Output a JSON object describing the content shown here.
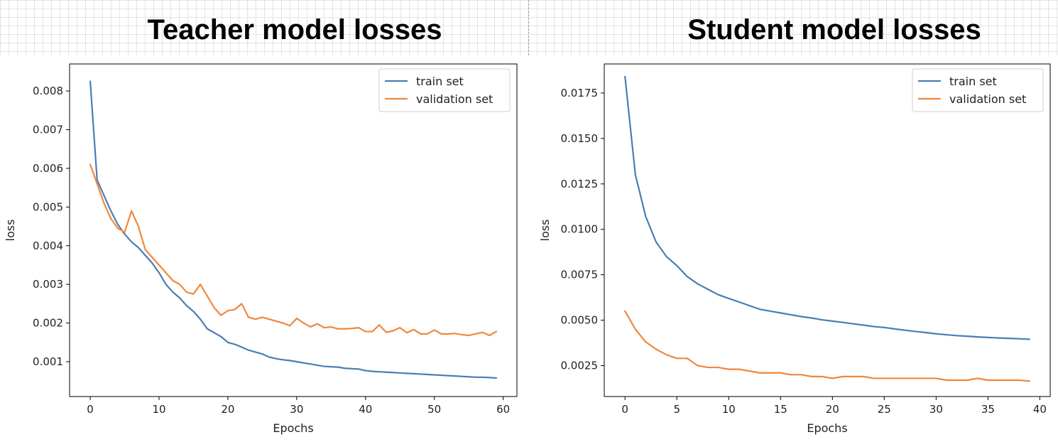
{
  "titles": {
    "left": "Teacher model losses",
    "right": "Student model losses"
  },
  "chart_data": [
    {
      "type": "line",
      "xlabel": "Epochs",
      "ylabel": "loss",
      "xlim": [
        -3,
        62
      ],
      "ylim": [
        0.0001,
        0.0087
      ],
      "xticks": [
        0,
        10,
        20,
        30,
        40,
        50,
        60
      ],
      "xtick_labels": [
        "0",
        "10",
        "20",
        "30",
        "40",
        "50",
        "60"
      ],
      "yticks": [
        0.001,
        0.002,
        0.003,
        0.004,
        0.005,
        0.006,
        0.007,
        0.008
      ],
      "ytick_labels": [
        "0.001",
        "0.002",
        "0.003",
        "0.004",
        "0.005",
        "0.006",
        "0.007",
        "0.008"
      ],
      "grid": false,
      "legend": "top-right",
      "series": [
        {
          "name": "train set",
          "color": "#4a7db3",
          "x": [
            0,
            1,
            2,
            3,
            4,
            5,
            6,
            7,
            8,
            9,
            10,
            11,
            12,
            13,
            14,
            15,
            16,
            17,
            18,
            19,
            20,
            21,
            22,
            23,
            24,
            25,
            26,
            27,
            28,
            29,
            30,
            31,
            32,
            33,
            34,
            35,
            36,
            37,
            38,
            39,
            40,
            41,
            42,
            43,
            44,
            45,
            46,
            47,
            48,
            49,
            50,
            51,
            52,
            53,
            54,
            55,
            56,
            57,
            58,
            59
          ],
          "values": [
            0.00825,
            0.0057,
            0.0053,
            0.0049,
            0.00455,
            0.0043,
            0.0041,
            0.00395,
            0.00375,
            0.00355,
            0.0033,
            0.003,
            0.0028,
            0.00265,
            0.00245,
            0.0023,
            0.0021,
            0.00185,
            0.00175,
            0.00165,
            0.0015,
            0.00145,
            0.00138,
            0.0013,
            0.00125,
            0.0012,
            0.00112,
            0.00108,
            0.00105,
            0.00103,
            0.001,
            0.00097,
            0.00094,
            0.00091,
            0.00088,
            0.00087,
            0.00086,
            0.00083,
            0.00082,
            0.00081,
            0.00077,
            0.00075,
            0.00074,
            0.00073,
            0.00072,
            0.00071,
            0.0007,
            0.00069,
            0.00068,
            0.00067,
            0.00066,
            0.00065,
            0.00064,
            0.00063,
            0.00062,
            0.00061,
            0.0006,
            0.0006,
            0.00059,
            0.00058
          ]
        },
        {
          "name": "validation set",
          "color": "#f0883a",
          "x": [
            0,
            1,
            2,
            3,
            4,
            5,
            6,
            7,
            8,
            9,
            10,
            11,
            12,
            13,
            14,
            15,
            16,
            17,
            18,
            19,
            20,
            21,
            22,
            23,
            24,
            25,
            26,
            27,
            28,
            29,
            30,
            31,
            32,
            33,
            34,
            35,
            36,
            37,
            38,
            39,
            40,
            41,
            42,
            43,
            44,
            45,
            46,
            47,
            48,
            49,
            50,
            51,
            52,
            53,
            54,
            55,
            56,
            57,
            58,
            59
          ],
          "values": [
            0.0061,
            0.0056,
            0.0051,
            0.0047,
            0.00445,
            0.00435,
            0.0049,
            0.0045,
            0.0039,
            0.0037,
            0.0035,
            0.0033,
            0.0031,
            0.003,
            0.0028,
            0.00275,
            0.003,
            0.0027,
            0.0024,
            0.0022,
            0.00232,
            0.00235,
            0.0025,
            0.00215,
            0.0021,
            0.00215,
            0.0021,
            0.00205,
            0.002,
            0.00193,
            0.00212,
            0.002,
            0.0019,
            0.00198,
            0.00188,
            0.0019,
            0.00185,
            0.00185,
            0.00186,
            0.00188,
            0.00178,
            0.00178,
            0.00195,
            0.00176,
            0.0018,
            0.00188,
            0.00175,
            0.00183,
            0.00172,
            0.00172,
            0.00182,
            0.00172,
            0.00172,
            0.00173,
            0.0017,
            0.00168,
            0.00172,
            0.00176,
            0.00168,
            0.00178
          ]
        }
      ]
    },
    {
      "type": "line",
      "xlabel": "Epochs",
      "ylabel": "loss",
      "xlim": [
        -2,
        41
      ],
      "ylim": [
        0.0008,
        0.0191
      ],
      "xticks": [
        0,
        5,
        10,
        15,
        20,
        25,
        30,
        35,
        40
      ],
      "xtick_labels": [
        "0",
        "5",
        "10",
        "15",
        "20",
        "25",
        "30",
        "35",
        "40"
      ],
      "yticks": [
        0.0025,
        0.005,
        0.0075,
        0.01,
        0.0125,
        0.015,
        0.0175
      ],
      "ytick_labels": [
        "0.0025",
        "0.0050",
        "0.0075",
        "0.0100",
        "0.0125",
        "0.0150",
        "0.0175"
      ],
      "grid": false,
      "legend": "top-right",
      "series": [
        {
          "name": "train set",
          "color": "#4a7db3",
          "x": [
            0,
            1,
            2,
            3,
            4,
            5,
            6,
            7,
            8,
            9,
            10,
            11,
            12,
            13,
            14,
            15,
            16,
            17,
            18,
            19,
            20,
            21,
            22,
            23,
            24,
            25,
            26,
            27,
            28,
            29,
            30,
            31,
            32,
            33,
            34,
            35,
            36,
            37,
            38,
            39
          ],
          "values": [
            0.0184,
            0.013,
            0.0107,
            0.0093,
            0.0085,
            0.008,
            0.0074,
            0.007,
            0.0067,
            0.0064,
            0.0062,
            0.006,
            0.0058,
            0.0056,
            0.0055,
            0.0054,
            0.0053,
            0.0052,
            0.00512,
            0.00502,
            0.00495,
            0.00488,
            0.0048,
            0.00473,
            0.00465,
            0.0046,
            0.00452,
            0.00445,
            0.00438,
            0.00432,
            0.00425,
            0.0042,
            0.00415,
            0.00412,
            0.00408,
            0.00405,
            0.00402,
            0.004,
            0.00398,
            0.00395
          ]
        },
        {
          "name": "validation set",
          "color": "#f0883a",
          "x": [
            0,
            1,
            2,
            3,
            4,
            5,
            6,
            7,
            8,
            9,
            10,
            11,
            12,
            13,
            14,
            15,
            16,
            17,
            18,
            19,
            20,
            21,
            22,
            23,
            24,
            25,
            26,
            27,
            28,
            29,
            30,
            31,
            32,
            33,
            34,
            35,
            36,
            37,
            38,
            39
          ],
          "values": [
            0.0055,
            0.0045,
            0.0038,
            0.0034,
            0.0031,
            0.0029,
            0.0029,
            0.0025,
            0.0024,
            0.0024,
            0.0023,
            0.0023,
            0.0022,
            0.0021,
            0.0021,
            0.0021,
            0.002,
            0.002,
            0.0019,
            0.0019,
            0.0018,
            0.0019,
            0.0019,
            0.0019,
            0.0018,
            0.0018,
            0.0018,
            0.0018,
            0.0018,
            0.0018,
            0.0018,
            0.0017,
            0.0017,
            0.0017,
            0.0018,
            0.0017,
            0.0017,
            0.0017,
            0.0017,
            0.00165
          ]
        }
      ]
    }
  ]
}
